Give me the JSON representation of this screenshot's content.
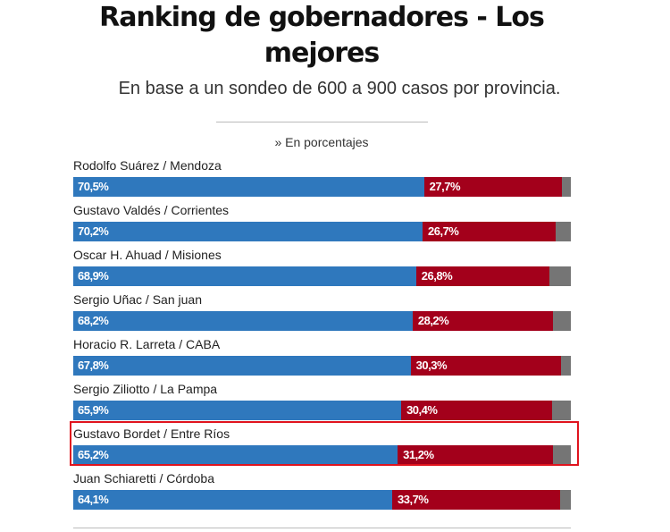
{
  "header": {
    "title": "Ranking de gobernadores - Los mejores",
    "subtitle": "En base a un sondeo de 600 a 900 casos por provincia.",
    "unit_note": "» En porcentajes"
  },
  "colors": {
    "positive": "#2f78bd",
    "negative": "#a3001b",
    "remainder": "#757575",
    "highlight": "#e0141e"
  },
  "chart_data": {
    "type": "bar",
    "orientation": "horizontal-stacked",
    "title": "Ranking de gobernadores - Los mejores",
    "subtitle": "En base a un sondeo de 600 a 900 casos por provincia.",
    "unit": "» En porcentajes",
    "xlim": [
      0,
      100
    ],
    "grid": false,
    "categories": [
      "Rodolfo Suárez / Mendoza",
      "Gustavo Valdés / Corrientes",
      "Oscar H. Ahuad / Misiones",
      "Sergio Uñac / San juan",
      "Horacio R. Larreta / CABA",
      "Sergio Ziliotto / La Pampa",
      "Gustavo Bordet / Entre Ríos",
      "Juan Schiaretti / Córdoba"
    ],
    "series": [
      {
        "values": [
          70.5,
          70.2,
          68.9,
          68.2,
          67.8,
          65.9,
          65.2,
          64.1
        ],
        "labels": [
          "70,5%",
          "70,2%",
          "68,9%",
          "68,2%",
          "67,8%",
          "65,9%",
          "65,2%",
          "64,1%"
        ]
      },
      {
        "values": [
          27.7,
          26.7,
          26.8,
          28.2,
          30.3,
          30.4,
          31.2,
          33.7
        ],
        "labels": [
          "27,7%",
          "26,7%",
          "26,8%",
          "28,2%",
          "30,3%",
          "30,4%",
          "31,2%",
          "33,7%"
        ]
      }
    ],
    "highlighted_category": "Gustavo Bordet / Entre Ríos"
  }
}
